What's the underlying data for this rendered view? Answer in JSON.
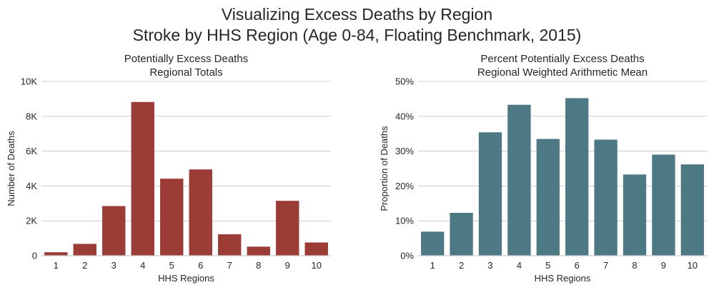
{
  "figure": {
    "title_line1": "Visualizing Excess Deaths by Region",
    "title_line2": "Stroke by HHS Region (Age 0-84, Floating Benchmark, 2015)"
  },
  "chart_data": [
    {
      "type": "bar",
      "title": "Potentially Excess Deaths",
      "subtitle": "Regional Totals",
      "xlabel": "HHS Regions",
      "ylabel": "Number of Deaths",
      "categories": [
        "1",
        "2",
        "3",
        "4",
        "5",
        "6",
        "7",
        "8",
        "9",
        "10"
      ],
      "values": [
        200,
        680,
        2850,
        8820,
        4420,
        4950,
        1230,
        520,
        3150,
        760
      ],
      "ylim": [
        0,
        10000
      ],
      "yticks": [
        0,
        2000,
        4000,
        6000,
        8000,
        10000
      ],
      "yticklabels": [
        "0",
        "2K",
        "4K",
        "6K",
        "8K",
        "10K"
      ],
      "color": "#9b3d36",
      "grid": true
    },
    {
      "type": "bar",
      "title": "Percent Potentially Excess Deaths",
      "subtitle": "Regional Weighted Arithmetic Mean",
      "xlabel": "HHS Regions",
      "ylabel": "Proportion of Deaths",
      "categories": [
        "1",
        "2",
        "3",
        "4",
        "5",
        "6",
        "7",
        "8",
        "9",
        "10"
      ],
      "values": [
        0.069,
        0.123,
        0.354,
        0.433,
        0.335,
        0.452,
        0.333,
        0.233,
        0.29,
        0.262
      ],
      "ylim": [
        0,
        0.5
      ],
      "yticks": [
        0,
        0.1,
        0.2,
        0.3,
        0.4,
        0.5
      ],
      "yticklabels": [
        "0%",
        "10%",
        "20%",
        "30%",
        "40%",
        "50%"
      ],
      "color": "#4d7985",
      "grid": true
    }
  ]
}
